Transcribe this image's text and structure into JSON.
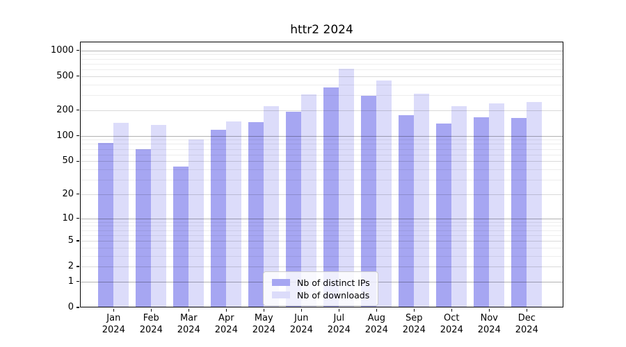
{
  "title": "httr2 2024",
  "chart_data": {
    "type": "bar",
    "title": "httr2 2024",
    "yscale": "log1p",
    "grid": "on",
    "legend_position": "inside-bottom-center",
    "categories": [
      "Jan",
      "Feb",
      "Mar",
      "Apr",
      "May",
      "Jun",
      "Jul",
      "Aug",
      "Sep",
      "Oct",
      "Nov",
      "Dec"
    ],
    "year_label": "2024",
    "series": [
      {
        "name": "Nb of distinct IPs",
        "color": "#a6a6f2",
        "values": [
          83,
          70,
          43,
          117,
          146,
          193,
          370,
          296,
          176,
          140,
          165,
          162
        ]
      },
      {
        "name": "Nb of downloads",
        "color": "#dcdcfa",
        "values": [
          141,
          135,
          90,
          147,
          224,
          304,
          610,
          446,
          314,
          222,
          239,
          248
        ]
      }
    ],
    "yticks": [
      0,
      1,
      2,
      5,
      10,
      20,
      50,
      100,
      200,
      500,
      1000
    ],
    "yticks_major": [
      1,
      10,
      100,
      1000
    ],
    "yticks_minor": [
      3,
      4,
      6,
      7,
      8,
      9,
      30,
      40,
      60,
      70,
      80,
      90,
      300,
      400,
      600,
      700,
      800,
      900
    ],
    "ylim": [
      0,
      1266
    ],
    "xlabel": "",
    "ylabel": ""
  }
}
